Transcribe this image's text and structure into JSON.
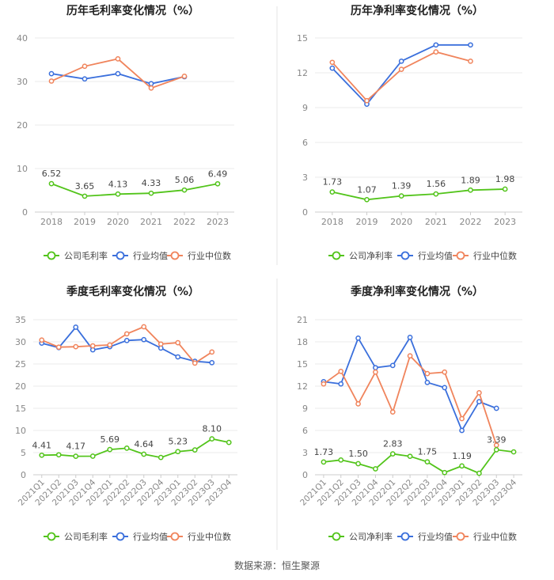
{
  "colors": {
    "company": "#52c41a",
    "industry_avg": "#3a6fdc",
    "industry_median": "#f0845c",
    "grid": "#ebebeb",
    "axis_text": "#888888",
    "title": "#222222",
    "divider": "#e6e6e6"
  },
  "source": "数据来源：恒生聚源",
  "chart_data": [
    {
      "type": "line",
      "title": "历年毛利率变化情况（%）",
      "categories": [
        "2018",
        "2019",
        "2020",
        "2021",
        "2022",
        "2023"
      ],
      "ylim": [
        0,
        40
      ],
      "yticks": [
        0,
        10,
        20,
        30,
        40
      ],
      "series": [
        {
          "name": "公司毛利率",
          "key": "company",
          "values": [
            6.52,
            3.65,
            4.13,
            4.33,
            5.06,
            6.49
          ],
          "labels": [
            "6.52",
            "3.65",
            "4.13",
            "4.33",
            "5.06",
            "6.49"
          ]
        },
        {
          "name": "行业均值",
          "key": "industry_avg",
          "values": [
            31.8,
            30.6,
            31.8,
            29.5,
            31.1,
            null
          ]
        },
        {
          "name": "行业中位数",
          "key": "industry_median",
          "values": [
            30.1,
            33.5,
            35.2,
            28.5,
            31.2,
            null
          ]
        }
      ]
    },
    {
      "type": "line",
      "title": "历年净利率变化情况（%）",
      "categories": [
        "2018",
        "2019",
        "2020",
        "2021",
        "2022",
        "2023"
      ],
      "ylim": [
        0,
        15
      ],
      "yticks": [
        0,
        3,
        6,
        9,
        12,
        15
      ],
      "series": [
        {
          "name": "公司净利率",
          "key": "company",
          "values": [
            1.73,
            1.07,
            1.39,
            1.56,
            1.89,
            1.98
          ],
          "labels": [
            "1.73",
            "1.07",
            "1.39",
            "1.56",
            "1.89",
            "1.98"
          ]
        },
        {
          "name": "行业均值",
          "key": "industry_avg",
          "values": [
            12.4,
            9.3,
            13.0,
            14.4,
            14.4,
            null
          ]
        },
        {
          "name": "行业中位数",
          "key": "industry_median",
          "values": [
            12.9,
            9.6,
            12.3,
            13.8,
            13.0,
            null
          ]
        }
      ]
    },
    {
      "type": "line",
      "title": "季度毛利率变化情况（%）",
      "categories": [
        "2021Q1",
        "2021Q2",
        "2021Q3",
        "2021Q4",
        "2022Q1",
        "2022Q2",
        "2022Q3",
        "2022Q4",
        "2023Q1",
        "2023Q2",
        "2023Q3",
        "2023Q4"
      ],
      "ylim": [
        0,
        35
      ],
      "yticks": [
        0,
        5,
        10,
        15,
        20,
        25,
        30,
        35
      ],
      "series": [
        {
          "name": "公司毛利率",
          "key": "company",
          "values": [
            4.41,
            4.5,
            4.17,
            4.2,
            5.69,
            6.0,
            4.64,
            3.9,
            5.23,
            5.6,
            8.1,
            7.3
          ],
          "labels": [
            "4.41",
            "",
            "4.17",
            "",
            "5.69",
            "",
            "4.64",
            "",
            "5.23",
            "",
            "8.10",
            ""
          ]
        },
        {
          "name": "行业均值",
          "key": "industry_avg",
          "values": [
            29.7,
            28.7,
            33.3,
            28.2,
            28.9,
            30.3,
            30.5,
            28.6,
            26.6,
            25.6,
            25.3,
            null
          ]
        },
        {
          "name": "行业中位数",
          "key": "industry_median",
          "values": [
            30.4,
            28.8,
            28.9,
            29.1,
            29.3,
            31.8,
            33.4,
            29.5,
            29.8,
            25.2,
            27.7,
            null
          ]
        }
      ]
    },
    {
      "type": "line",
      "title": "季度净利率变化情况（%）",
      "categories": [
        "2021Q1",
        "2021Q2",
        "2021Q3",
        "2021Q4",
        "2022Q1",
        "2022Q2",
        "2022Q3",
        "2022Q4",
        "2023Q1",
        "2023Q2",
        "2023Q3",
        "2023Q4"
      ],
      "ylim": [
        0,
        21
      ],
      "yticks": [
        0,
        3,
        6,
        9,
        12,
        15,
        18,
        21
      ],
      "series": [
        {
          "name": "公司净利率",
          "key": "company",
          "values": [
            1.73,
            2.0,
            1.5,
            0.8,
            2.83,
            2.5,
            1.75,
            0.3,
            1.19,
            0.2,
            3.39,
            3.1
          ],
          "labels": [
            "1.73",
            "",
            "1.50",
            "",
            "2.83",
            "",
            "1.75",
            "",
            "1.19",
            "",
            "3.39",
            ""
          ]
        },
        {
          "name": "行业均值",
          "key": "industry_avg",
          "values": [
            12.6,
            12.3,
            18.5,
            14.5,
            14.8,
            18.6,
            12.5,
            11.8,
            6.0,
            9.9,
            9.0,
            null
          ]
        },
        {
          "name": "行业中位数",
          "key": "industry_median",
          "values": [
            12.3,
            14.0,
            9.6,
            13.9,
            8.5,
            16.1,
            13.7,
            13.9,
            7.6,
            11.1,
            4.0,
            null
          ]
        }
      ]
    }
  ]
}
